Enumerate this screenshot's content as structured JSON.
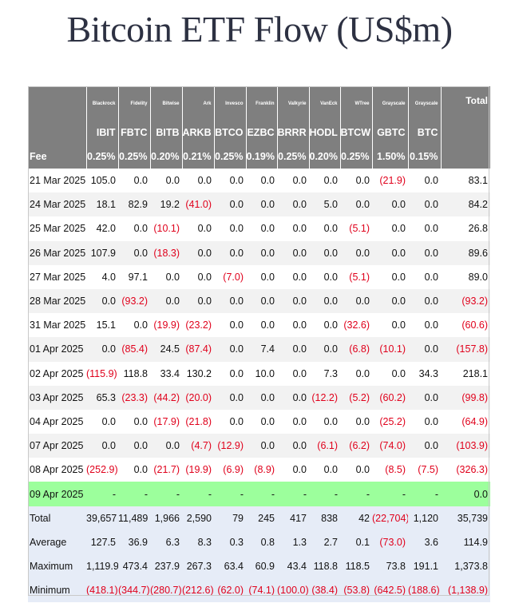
{
  "title": "Bitcoin ETF Flow (US$m)",
  "issuers": [
    "Blackrock",
    "Fidelity",
    "Bitwise",
    "Ark",
    "Invesco",
    "Franklin",
    "Valkyrie",
    "VanEck",
    "WTree",
    "Grayscale",
    "Grayscale"
  ],
  "total_header": "Total",
  "tickers": [
    "IBIT",
    "FBTC",
    "BITB",
    "ARKB",
    "BTCO",
    "EZBC",
    "BRRR",
    "HODL",
    "BTCW",
    "GBTC",
    "BTC"
  ],
  "fee_label": "Fee",
  "fees": [
    "0.25%",
    "0.25%",
    "0.20%",
    "0.21%",
    "0.25%",
    "0.19%",
    "0.25%",
    "0.20%",
    "0.25%",
    "1.50%",
    "0.15%"
  ],
  "colors": {
    "header_bg": "#7f7f7f",
    "negative": "#e0001b",
    "highlight_row": "#9cff9c",
    "summary_bg": "#e6ecf7",
    "alt_row": "#f2f2f2"
  },
  "rows": [
    {
      "date": "21 Mar 2025",
      "values": [
        "105.0",
        "0.0",
        "0.0",
        "0.0",
        "0.0",
        "0.0",
        "0.0",
        "0.0",
        "0.0",
        "(21.9)",
        "0.0",
        "83.1"
      ]
    },
    {
      "date": "24 Mar 2025",
      "values": [
        "18.1",
        "82.9",
        "19.2",
        "(41.0)",
        "0.0",
        "0.0",
        "0.0",
        "5.0",
        "0.0",
        "0.0",
        "0.0",
        "84.2"
      ]
    },
    {
      "date": "25 Mar 2025",
      "values": [
        "42.0",
        "0.0",
        "(10.1)",
        "0.0",
        "0.0",
        "0.0",
        "0.0",
        "0.0",
        "(5.1)",
        "0.0",
        "0.0",
        "26.8"
      ]
    },
    {
      "date": "26 Mar 2025",
      "values": [
        "107.9",
        "0.0",
        "(18.3)",
        "0.0",
        "0.0",
        "0.0",
        "0.0",
        "0.0",
        "0.0",
        "0.0",
        "0.0",
        "89.6"
      ]
    },
    {
      "date": "27 Mar 2025",
      "values": [
        "4.0",
        "97.1",
        "0.0",
        "0.0",
        "(7.0)",
        "0.0",
        "0.0",
        "0.0",
        "(5.1)",
        "0.0",
        "0.0",
        "89.0"
      ]
    },
    {
      "date": "28 Mar 2025",
      "values": [
        "0.0",
        "(93.2)",
        "0.0",
        "0.0",
        "0.0",
        "0.0",
        "0.0",
        "0.0",
        "0.0",
        "0.0",
        "0.0",
        "(93.2)"
      ]
    },
    {
      "date": "31 Mar 2025",
      "values": [
        "15.1",
        "0.0",
        "(19.9)",
        "(23.2)",
        "0.0",
        "0.0",
        "0.0",
        "0.0",
        "(32.6)",
        "0.0",
        "0.0",
        "(60.6)"
      ]
    },
    {
      "date": "01 Apr 2025",
      "values": [
        "0.0",
        "(85.4)",
        "24.5",
        "(87.4)",
        "0.0",
        "7.4",
        "0.0",
        "0.0",
        "(6.8)",
        "(10.1)",
        "0.0",
        "(157.8)"
      ]
    },
    {
      "date": "02 Apr 2025",
      "values": [
        "(115.9)",
        "118.8",
        "33.4",
        "130.2",
        "0.0",
        "10.0",
        "0.0",
        "7.3",
        "0.0",
        "0.0",
        "34.3",
        "218.1"
      ]
    },
    {
      "date": "03 Apr 2025",
      "values": [
        "65.3",
        "(23.3)",
        "(44.2)",
        "(20.0)",
        "0.0",
        "0.0",
        "0.0",
        "(12.2)",
        "(5.2)",
        "(60.2)",
        "0.0",
        "(99.8)"
      ]
    },
    {
      "date": "04 Apr 2025",
      "values": [
        "0.0",
        "0.0",
        "(17.9)",
        "(21.8)",
        "0.0",
        "0.0",
        "0.0",
        "0.0",
        "0.0",
        "(25.2)",
        "0.0",
        "(64.9)"
      ]
    },
    {
      "date": "07 Apr 2025",
      "values": [
        "0.0",
        "0.0",
        "0.0",
        "(4.7)",
        "(12.9)",
        "0.0",
        "0.0",
        "(6.1)",
        "(6.2)",
        "(74.0)",
        "0.0",
        "(103.9)"
      ]
    },
    {
      "date": "08 Apr 2025",
      "values": [
        "(252.9)",
        "0.0",
        "(21.7)",
        "(19.9)",
        "(6.9)",
        "(8.9)",
        "0.0",
        "0.0",
        "0.0",
        "(8.5)",
        "(7.5)",
        "(326.3)"
      ]
    },
    {
      "date": "09 Apr 2025",
      "values": [
        "-",
        "-",
        "-",
        "-",
        "-",
        "-",
        "-",
        "-",
        "-",
        "-",
        "-",
        "0.0"
      ]
    }
  ],
  "summary": [
    {
      "label": "Total",
      "values": [
        "39,657",
        "11,489",
        "1,966",
        "2,590",
        "79",
        "245",
        "417",
        "838",
        "42",
        "(22,704)",
        "1,120",
        "35,739"
      ]
    },
    {
      "label": "Average",
      "values": [
        "127.5",
        "36.9",
        "6.3",
        "8.3",
        "0.3",
        "0.8",
        "1.3",
        "2.7",
        "0.1",
        "(73.0)",
        "3.6",
        "114.9"
      ]
    },
    {
      "label": "Maximum",
      "values": [
        "1,119.9",
        "473.4",
        "237.9",
        "267.3",
        "63.4",
        "60.9",
        "43.4",
        "118.8",
        "118.5",
        "73.8",
        "191.1",
        "1,373.8"
      ]
    },
    {
      "label": "Minimum",
      "values": [
        "(418.1)",
        "(344.7)",
        "(280.7)",
        "(212.6)",
        "(62.0)",
        "(74.1)",
        "(100.0)",
        "(38.4)",
        "(53.8)",
        "(642.5)",
        "(188.6)",
        "(1,138.9)"
      ]
    }
  ]
}
